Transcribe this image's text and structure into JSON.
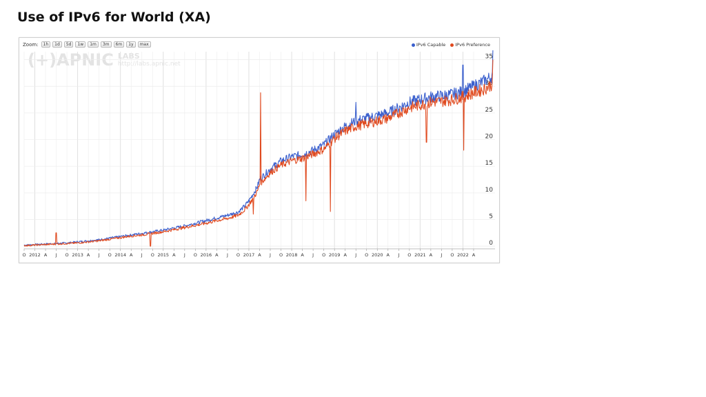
{
  "title": "Use of IPv6 for World (XA)",
  "zoom": {
    "label": "Zoom:",
    "buttons": [
      "1h",
      "1d",
      "5d",
      "1w",
      "1m",
      "3m",
      "6m",
      "1y",
      "max"
    ]
  },
  "watermark": {
    "logo": "(+)APNIC",
    "labs": "LABS",
    "url": "http://labs.apnic.net"
  },
  "colors": {
    "capable": "#3a5fcd",
    "preference": "#e04a1f",
    "grid": "#ececec"
  },
  "chart_data": {
    "type": "line",
    "title": "Use of IPv6 for World (XA)",
    "xlabel": "",
    "ylabel": "",
    "ylim": [
      0,
      35
    ],
    "yticks": [
      0,
      5,
      10,
      15,
      20,
      25,
      30,
      35
    ],
    "y_axis_side": "right",
    "legend_position": "top-right",
    "grid": true,
    "x_tick_labels": [
      "O",
      "2012",
      "A",
      "J",
      "O",
      "2013",
      "A",
      "J",
      "O",
      "2014",
      "A",
      "J",
      "O",
      "2015",
      "A",
      "J",
      "O",
      "2016",
      "A",
      "J",
      "O",
      "2017",
      "A",
      "J",
      "O",
      "2018",
      "A",
      "J",
      "O",
      "2019",
      "A",
      "J",
      "O",
      "2020",
      "A",
      "J",
      "O",
      "2021",
      "A",
      "J",
      "O",
      "2022",
      "A"
    ],
    "x_range": [
      2011.75,
      2022.75
    ],
    "series": [
      {
        "name": "IPv6 Capable",
        "color": "#3a5fcd",
        "x": [
          2011.75,
          2012.0,
          2012.25,
          2012.5,
          2012.75,
          2013.0,
          2013.25,
          2013.5,
          2013.75,
          2014.0,
          2014.25,
          2014.5,
          2014.75,
          2015.0,
          2015.25,
          2015.5,
          2015.75,
          2016.0,
          2016.25,
          2016.5,
          2016.75,
          2016.9,
          2017.0,
          2017.1,
          2017.2,
          2017.25,
          2017.5,
          2017.75,
          2018.0,
          2018.25,
          2018.5,
          2018.75,
          2019.0,
          2019.25,
          2019.5,
          2019.75,
          2020.0,
          2020.25,
          2020.5,
          2020.75,
          2021.0,
          2021.25,
          2021.5,
          2021.75,
          2022.0,
          2022.25,
          2022.5,
          2022.7
        ],
        "y": [
          0.2,
          0.3,
          0.4,
          0.5,
          0.6,
          0.8,
          1.0,
          1.2,
          1.5,
          1.8,
          2.1,
          2.4,
          2.7,
          3.0,
          3.4,
          3.8,
          4.3,
          4.8,
          5.3,
          5.8,
          6.4,
          7.5,
          8.5,
          9.8,
          11.2,
          12.5,
          14.5,
          16.0,
          16.8,
          17.2,
          18.0,
          19.0,
          21.0,
          22.5,
          23.5,
          24.0,
          24.5,
          25.0,
          26.0,
          27.0,
          27.5,
          28.0,
          28.2,
          28.5,
          29.0,
          30.0,
          31.0,
          32.0
        ]
      },
      {
        "name": "IPv6 Preference",
        "color": "#e04a1f",
        "x": [
          2011.75,
          2012.0,
          2012.25,
          2012.5,
          2012.75,
          2013.0,
          2013.25,
          2013.5,
          2013.75,
          2014.0,
          2014.25,
          2014.5,
          2014.75,
          2015.0,
          2015.25,
          2015.5,
          2015.75,
          2016.0,
          2016.25,
          2016.5,
          2016.75,
          2016.9,
          2017.0,
          2017.1,
          2017.2,
          2017.25,
          2017.5,
          2017.75,
          2018.0,
          2018.25,
          2018.5,
          2018.75,
          2019.0,
          2019.25,
          2019.5,
          2019.75,
          2020.0,
          2020.25,
          2020.5,
          2020.75,
          2021.0,
          2021.25,
          2021.5,
          2021.75,
          2022.0,
          2022.25,
          2022.5,
          2022.7
        ],
        "y": [
          0.1,
          0.2,
          0.3,
          0.4,
          0.5,
          0.6,
          0.8,
          1.0,
          1.3,
          1.6,
          1.9,
          2.1,
          2.4,
          2.7,
          3.1,
          3.5,
          3.9,
          4.3,
          4.8,
          5.2,
          5.8,
          6.8,
          7.8,
          9.0,
          10.3,
          11.6,
          13.8,
          15.2,
          16.0,
          16.5,
          17.3,
          18.2,
          20.2,
          21.6,
          22.5,
          23.0,
          23.5,
          24.0,
          25.0,
          26.0,
          26.5,
          27.0,
          27.2,
          27.5,
          28.0,
          28.8,
          29.5,
          30.5
        ]
      }
    ],
    "annotations_spikes": [
      {
        "series": "IPv6 Preference",
        "x": 2012.5,
        "y": 2.5
      },
      {
        "series": "IPv6 Preference",
        "x": 2017.27,
        "y": 28.8
      },
      {
        "series": "IPv6 Capable",
        "x": 2019.5,
        "y": 27.0
      },
      {
        "series": "IPv6 Capable",
        "x": 2022.0,
        "y": 34.0
      },
      {
        "series": "IPv6 Capable",
        "x": 2022.7,
        "y": 38.0
      },
      {
        "series": "IPv6 Preference",
        "x": 2022.7,
        "y": 35.0
      }
    ],
    "annotations_dips": [
      {
        "series": "IPv6 Preference",
        "x": 2014.7,
        "y": 0.0
      },
      {
        "series": "IPv6 Preference",
        "x": 2017.1,
        "y": 6.0
      },
      {
        "series": "IPv6 Preference",
        "x": 2018.33,
        "y": 8.5
      },
      {
        "series": "IPv6 Preference",
        "x": 2018.9,
        "y": 6.5
      },
      {
        "series": "IPv6 Preference",
        "x": 2021.15,
        "y": 19.5
      },
      {
        "series": "IPv6 Preference",
        "x": 2022.02,
        "y": 18.0
      }
    ]
  }
}
